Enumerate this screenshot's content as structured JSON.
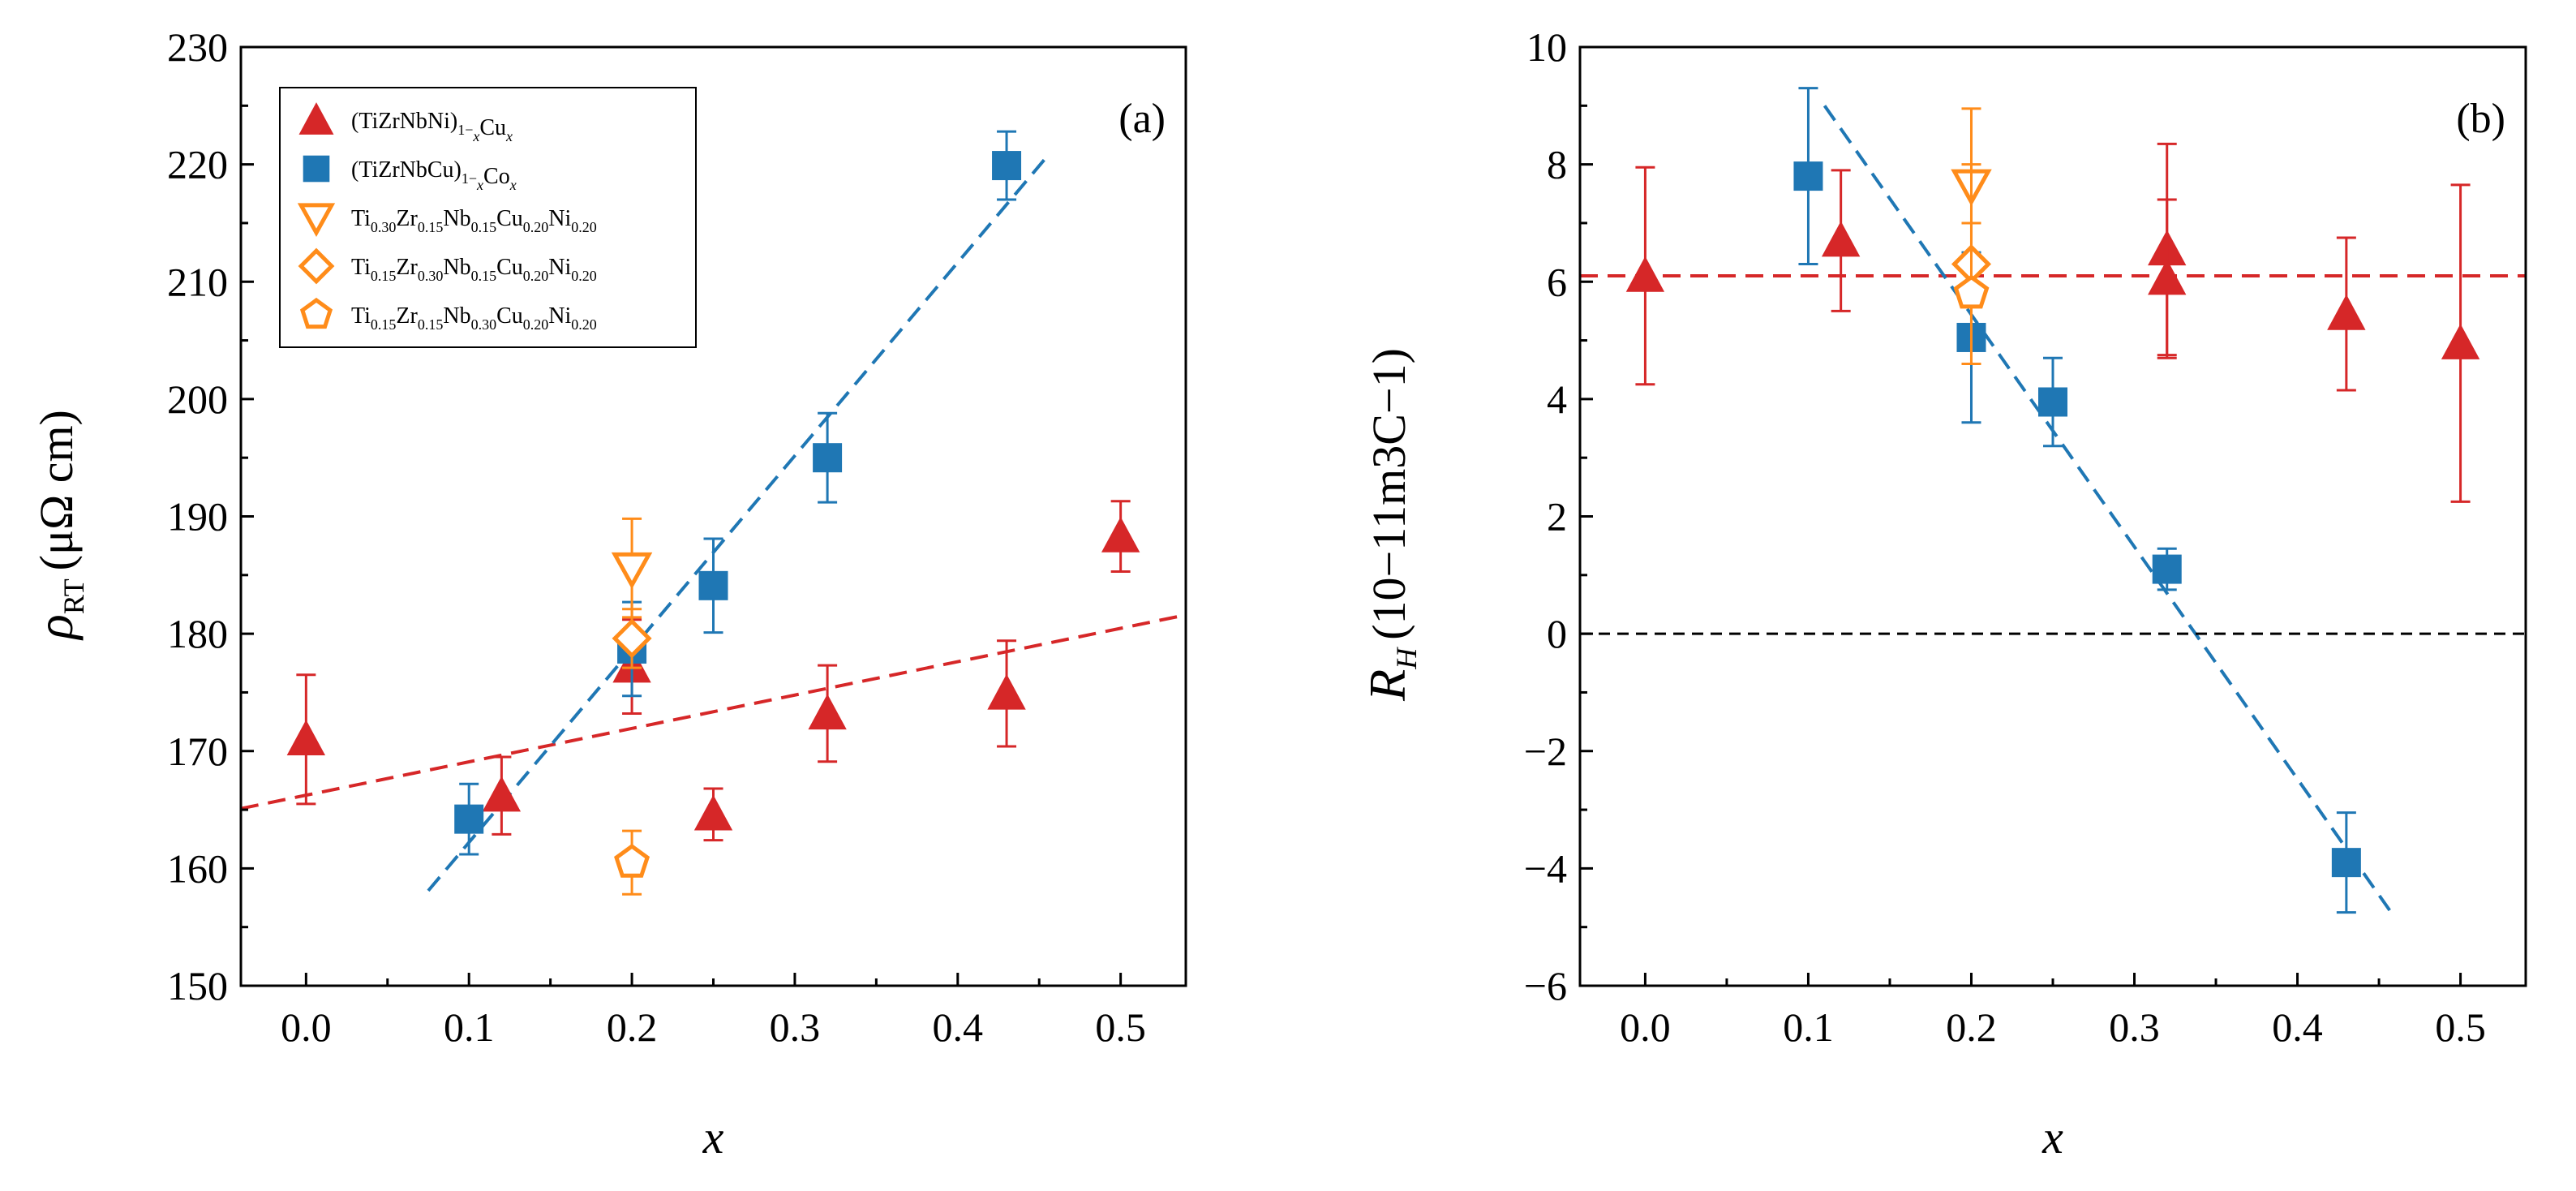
{
  "colors": {
    "cu_series": "#d62728",
    "co_series": "#1f77b4",
    "quinary": "#ff8c1a",
    "zero_line": "#000000"
  },
  "chart_data": [
    {
      "type": "scatter",
      "panel_label": "(a)",
      "xlabel": "x",
      "ylabel_main": "ρ",
      "ylabel_sub": "RT",
      "ylabel_unit": "(μΩ cm)",
      "xlim": [
        -0.04,
        0.54
      ],
      "ylim": [
        150,
        230
      ],
      "xticks": [
        0.0,
        0.1,
        0.2,
        0.3,
        0.4,
        0.5
      ],
      "xtick_labels": [
        "0.0",
        "0.1",
        "0.2",
        "0.3",
        "0.4",
        "0.5"
      ],
      "yticks": [
        150,
        160,
        170,
        180,
        190,
        200,
        210,
        220,
        230
      ],
      "ytick_labels": [
        "150",
        "160",
        "170",
        "180",
        "190",
        "200",
        "210",
        "220",
        "230"
      ],
      "legend": {
        "position": "top-left",
        "entries": [
          {
            "series": "cu",
            "marker": "triangle-up",
            "filled": true,
            "parts": [
              [
                "(TiZrNbNi)",
                "n"
              ],
              [
                "1−",
                "sub"
              ],
              [
                "x",
                "subi"
              ],
              [
                "Cu",
                "n"
              ],
              [
                "x",
                "subi"
              ]
            ]
          },
          {
            "series": "co",
            "marker": "square",
            "filled": true,
            "parts": [
              [
                "(TiZrNbCu)",
                "n"
              ],
              [
                "1−",
                "sub"
              ],
              [
                "x",
                "subi"
              ],
              [
                "Co",
                "n"
              ],
              [
                "x",
                "subi"
              ]
            ]
          },
          {
            "series": "q1",
            "marker": "triangle-down",
            "filled": false,
            "parts": [
              [
                "Ti",
                "n"
              ],
              [
                "0.30",
                "sub"
              ],
              [
                "Zr",
                "n"
              ],
              [
                "0.15",
                "sub"
              ],
              [
                "Nb",
                "n"
              ],
              [
                "0.15",
                "sub"
              ],
              [
                "Cu",
                "n"
              ],
              [
                "0.20",
                "sub"
              ],
              [
                "Ni",
                "n"
              ],
              [
                "0.20",
                "sub"
              ]
            ]
          },
          {
            "series": "q2",
            "marker": "diamond",
            "filled": false,
            "parts": [
              [
                "Ti",
                "n"
              ],
              [
                "0.15",
                "sub"
              ],
              [
                "Zr",
                "n"
              ],
              [
                "0.30",
                "sub"
              ],
              [
                "Nb",
                "n"
              ],
              [
                "0.15",
                "sub"
              ],
              [
                "Cu",
                "n"
              ],
              [
                "0.20",
                "sub"
              ],
              [
                "Ni",
                "n"
              ],
              [
                "0.20",
                "sub"
              ]
            ]
          },
          {
            "series": "q3",
            "marker": "pentagon",
            "filled": false,
            "parts": [
              [
                "Ti",
                "n"
              ],
              [
                "0.15",
                "sub"
              ],
              [
                "Zr",
                "n"
              ],
              [
                "0.15",
                "sub"
              ],
              [
                "Nb",
                "n"
              ],
              [
                "0.30",
                "sub"
              ],
              [
                "Cu",
                "n"
              ],
              [
                "0.20",
                "sub"
              ],
              [
                "Ni",
                "n"
              ],
              [
                "0.20",
                "sub"
              ]
            ]
          }
        ]
      },
      "series": [
        {
          "name": "(TiZrNbNi)1−xCux",
          "key": "cu",
          "marker": "triangle-up",
          "filled": true,
          "x": [
            0.0,
            0.12,
            0.2,
            0.25,
            0.32,
            0.43,
            0.5
          ],
          "y": [
            171.0,
            166.2,
            177.2,
            164.6,
            173.2,
            174.9,
            188.3
          ],
          "err": [
            5.5,
            3.3,
            4.0,
            2.2,
            4.1,
            4.5,
            3.0
          ]
        },
        {
          "name": "(TiZrNbCu)1−xCox",
          "key": "co",
          "marker": "square",
          "filled": true,
          "x": [
            0.1,
            0.2,
            0.25,
            0.32,
            0.43
          ],
          "y": [
            164.2,
            178.7,
            184.1,
            195.0,
            219.9
          ],
          "err": [
            3.0,
            4.0,
            4.0,
            3.8,
            2.9
          ]
        },
        {
          "name": "Ti0.30Zr0.15Nb0.15Cu0.20Ni0.20",
          "key": "q1",
          "marker": "triangle-down",
          "filled": false,
          "x": [
            0.2
          ],
          "y": [
            185.6
          ],
          "err": [
            4.2
          ]
        },
        {
          "name": "Ti0.15Zr0.30Nb0.15Cu0.20Ni0.20",
          "key": "q2",
          "marker": "diamond",
          "filled": false,
          "x": [
            0.2
          ],
          "y": [
            179.6
          ],
          "err": [
            2.5
          ]
        },
        {
          "name": "Ti0.15Zr0.15Nb0.30Cu0.20Ni0.20",
          "key": "q3",
          "marker": "pentagon",
          "filled": false,
          "x": [
            0.2
          ],
          "y": [
            160.5
          ],
          "err": [
            2.7
          ]
        }
      ],
      "fit_lines": [
        {
          "key": "cu",
          "x": [
            -0.04,
            0.54
          ],
          "y": [
            165.1,
            181.6
          ]
        },
        {
          "key": "co",
          "x": [
            0.075,
            0.455
          ],
          "y": [
            158.1,
            220.7
          ]
        }
      ]
    },
    {
      "type": "scatter",
      "panel_label": "(b)",
      "xlabel": "x",
      "ylabel_main": "R",
      "ylabel_sub": "H",
      "ylabel_unit": "(10−11m3C−1)",
      "xlim": [
        -0.04,
        0.54
      ],
      "ylim": [
        -6,
        10
      ],
      "xticks": [
        0.0,
        0.1,
        0.2,
        0.3,
        0.4,
        0.5
      ],
      "xtick_labels": [
        "0.0",
        "0.1",
        "0.2",
        "0.3",
        "0.4",
        "0.5"
      ],
      "yticks": [
        -6,
        -4,
        -2,
        0,
        2,
        4,
        6,
        8,
        10
      ],
      "ytick_labels": [
        "−6",
        "−4",
        "−2",
        "0",
        "2",
        "4",
        "6",
        "8",
        "10"
      ],
      "series": [
        {
          "name": "(TiZrNbNi)1−xCux",
          "key": "cu",
          "marker": "triangle-up",
          "filled": true,
          "x": [
            0.0,
            0.12,
            0.32,
            0.32,
            0.43,
            0.5
          ],
          "y": [
            6.1,
            6.7,
            6.55,
            6.05,
            5.45,
            4.95
          ],
          "err": [
            1.85,
            1.2,
            1.8,
            1.35,
            1.3,
            2.7
          ]
        },
        {
          "name": "(TiZrNbCu)1−xCox",
          "key": "co",
          "marker": "square",
          "filled": true,
          "x": [
            0.1,
            0.2,
            0.25,
            0.32,
            0.43
          ],
          "y": [
            7.8,
            5.05,
            3.95,
            1.1,
            -3.9
          ],
          "err": [
            1.5,
            1.45,
            0.75,
            0.35,
            0.85
          ]
        },
        {
          "name": "Ti0.30Zr0.15Nb0.15Cu0.20Ni0.20",
          "key": "q1",
          "marker": "triangle-down",
          "filled": false,
          "x": [
            0.2
          ],
          "y": [
            7.65
          ],
          "err": [
            1.3
          ]
        },
        {
          "name": "Ti0.15Zr0.30Nb0.15Cu0.20Ni0.20",
          "key": "q2",
          "marker": "diamond",
          "filled": false,
          "x": [
            0.2
          ],
          "y": [
            6.3
          ],
          "err": [
            1.7
          ]
        },
        {
          "name": "Ti0.15Zr0.15Nb0.30Cu0.20Ni0.20",
          "key": "q3",
          "marker": "pentagon",
          "filled": false,
          "x": [
            0.2
          ],
          "y": [
            5.8
          ],
          "err": [
            1.2
          ]
        }
      ],
      "fit_lines": [
        {
          "key": "cu",
          "x": [
            -0.04,
            0.54
          ],
          "y": [
            6.1,
            6.1
          ]
        },
        {
          "key": "co",
          "x": [
            0.11,
            0.46
          ],
          "y": [
            9.0,
            -4.85
          ]
        },
        {
          "key": "zero",
          "x": [
            -0.04,
            0.54
          ],
          "y": [
            0,
            0
          ]
        }
      ]
    }
  ]
}
